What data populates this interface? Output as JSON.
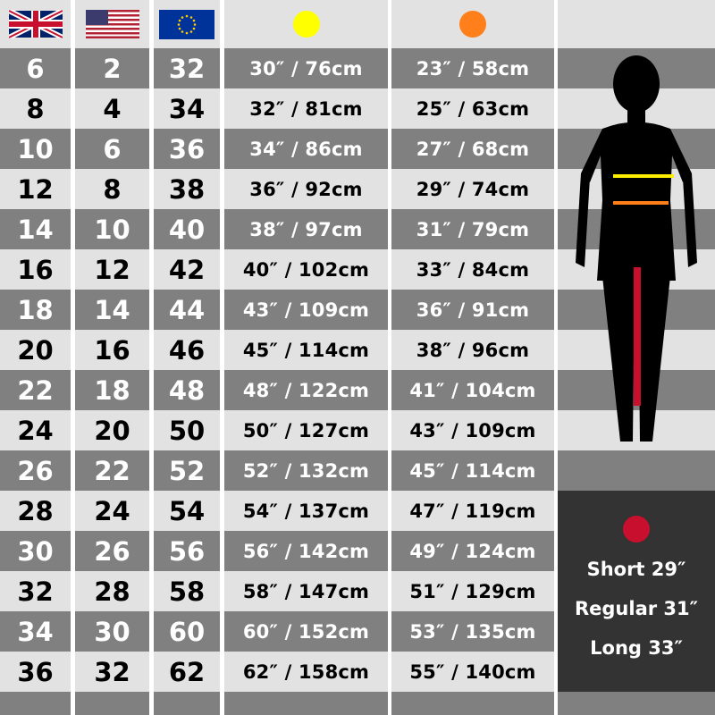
{
  "header": {
    "uk_flag_icon": "uk-flag",
    "us_flag_icon": "us-flag",
    "eu_flag_icon": "eu-flag",
    "waist_marker_color": "#ffff00",
    "hip_marker_color": "#ff7f1a"
  },
  "sizes": {
    "uk": [
      "6",
      "8",
      "10",
      "12",
      "14",
      "16",
      "18",
      "20",
      "22",
      "24",
      "26",
      "28",
      "30",
      "32",
      "34",
      "36"
    ],
    "us": [
      "2",
      "4",
      "6",
      "8",
      "10",
      "12",
      "14",
      "16",
      "18",
      "20",
      "22",
      "24",
      "26",
      "28",
      "30",
      "32"
    ],
    "eu": [
      "32",
      "34",
      "36",
      "38",
      "40",
      "42",
      "44",
      "46",
      "48",
      "50",
      "52",
      "54",
      "56",
      "58",
      "60",
      "62"
    ],
    "waist": [
      "30″ / 76cm",
      "32″ / 81cm",
      "34″ / 86cm",
      "36″ / 92cm",
      "38″ / 97cm",
      "40″ / 102cm",
      "43″ / 109cm",
      "45″ / 114cm",
      "48″ / 122cm",
      "50″ / 127cm",
      "52″ / 132cm",
      "54″ / 137cm",
      "56″ / 142cm",
      "58″ / 147cm",
      "60″ / 152cm",
      "62″ / 158cm"
    ],
    "hip": [
      "23″ / 58cm",
      "25″ / 63cm",
      "27″ / 68cm",
      "29″ / 74cm",
      "31″ / 79cm",
      "33″ / 84cm",
      "36″ / 91cm",
      "38″ / 96cm",
      "41″ / 104cm",
      "43″ / 109cm",
      "45″ / 114cm",
      "47″ / 119cm",
      "49″ / 124cm",
      "51″ / 129cm",
      "53″ / 135cm",
      "55″ / 140cm"
    ]
  },
  "inseam": {
    "marker_color": "#c8102e",
    "options": [
      "Short 29″",
      "Regular 31″",
      "Long 33″"
    ]
  }
}
